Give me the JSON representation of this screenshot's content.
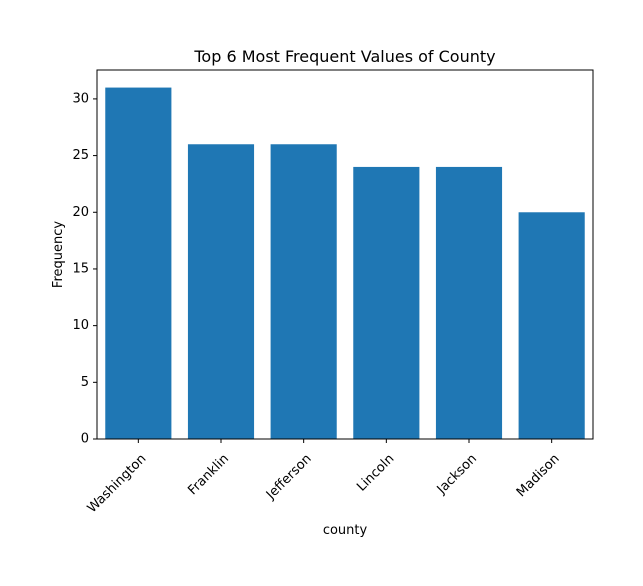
{
  "chart_data": {
    "type": "bar",
    "title": "Top 6 Most Frequent Values of County",
    "xlabel": "county",
    "ylabel": "Frequency",
    "categories": [
      "Washington",
      "Franklin",
      "Jefferson",
      "Lincoln",
      "Jackson",
      "Madison"
    ],
    "values": [
      31,
      26,
      26,
      24,
      24,
      20
    ],
    "ylim": [
      0,
      32.55
    ],
    "yticks": [
      0,
      5,
      10,
      15,
      20,
      25,
      30
    ],
    "grid": false,
    "bar_color": "#1f77b4"
  }
}
